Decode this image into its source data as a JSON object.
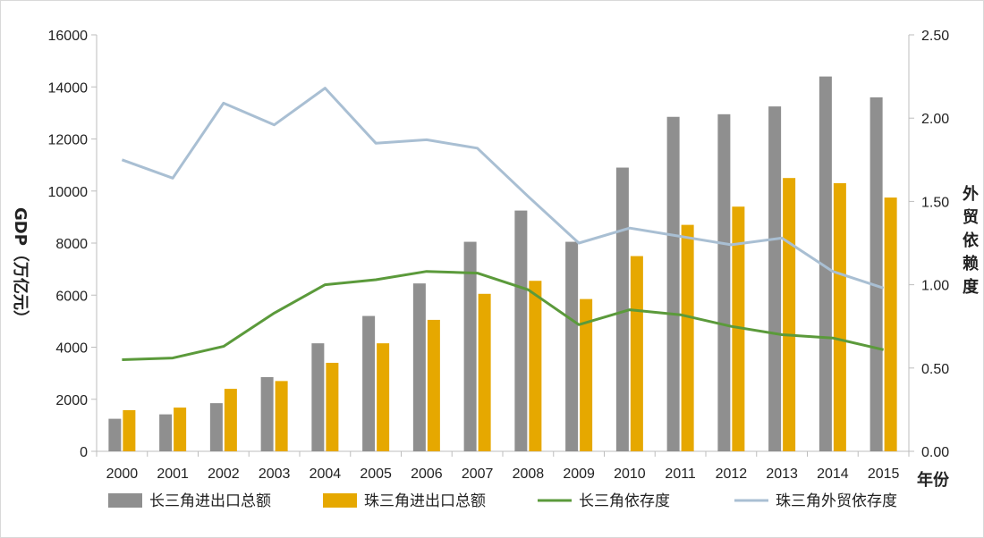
{
  "chart_data": {
    "type": "bar+line",
    "categories": [
      "2000",
      "2001",
      "2002",
      "2003",
      "2004",
      "2005",
      "2006",
      "2007",
      "2008",
      "2009",
      "2010",
      "2011",
      "2012",
      "2013",
      "2014",
      "2015"
    ],
    "xlabel": "年份",
    "ylabel_left": "GDP（万亿元）",
    "ylabel_right": "外贸依赖度",
    "left_axis": {
      "min": 0,
      "max": 16000,
      "ticks": [
        "0",
        "2000",
        "4000",
        "6000",
        "8000",
        "10000",
        "12000",
        "14000",
        "16000"
      ]
    },
    "right_axis": {
      "min": 0,
      "max": 2.5,
      "ticks": [
        "0.00",
        "0.50",
        "1.00",
        "1.50",
        "2.00",
        "2.50"
      ]
    },
    "series": [
      {
        "name": "长三角进出口总额",
        "type": "bar",
        "axis": "left",
        "color": "#8f8f8f",
        "values": [
          1250,
          1420,
          1850,
          2850,
          4150,
          5200,
          6450,
          8050,
          9250,
          8050,
          10900,
          12850,
          12950,
          13250,
          14400,
          13600
        ]
      },
      {
        "name": "珠三角进出口总额",
        "type": "bar",
        "axis": "left",
        "color": "#e6a800",
        "values": [
          1580,
          1680,
          2400,
          2700,
          3400,
          4150,
          5050,
          6050,
          6550,
          5850,
          7500,
          8700,
          9400,
          10500,
          10300,
          9750
        ]
      },
      {
        "name": "长三角依存度",
        "type": "line",
        "axis": "right",
        "color": "#5b9a3b",
        "values": [
          0.55,
          0.56,
          0.63,
          0.83,
          1.0,
          1.03,
          1.08,
          1.07,
          0.97,
          0.76,
          0.85,
          0.82,
          0.75,
          0.7,
          0.68,
          0.61
        ]
      },
      {
        "name": "珠三角外贸依存度",
        "type": "line",
        "axis": "right",
        "color": "#a9bfd3",
        "values": [
          1.75,
          1.64,
          2.09,
          1.96,
          2.18,
          1.85,
          1.87,
          1.82,
          1.53,
          1.25,
          1.34,
          1.29,
          1.24,
          1.28,
          1.08,
          0.98
        ]
      }
    ],
    "legend_position": "bottom",
    "grid": false
  }
}
